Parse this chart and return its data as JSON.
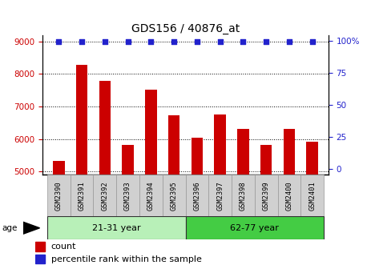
{
  "title": "GDS156 / 40876_at",
  "samples": [
    "GSM2390",
    "GSM2391",
    "GSM2392",
    "GSM2393",
    "GSM2394",
    "GSM2395",
    "GSM2396",
    "GSM2397",
    "GSM2398",
    "GSM2399",
    "GSM2400",
    "GSM2401"
  ],
  "counts": [
    5320,
    8270,
    7790,
    5810,
    7530,
    6740,
    6040,
    6760,
    6320,
    5810,
    6320,
    5910
  ],
  "percentiles": [
    99,
    99,
    99,
    99,
    99,
    99,
    99,
    99,
    99,
    99,
    99,
    99
  ],
  "ylim_left": [
    4900,
    9200
  ],
  "ylim_right": [
    -4.5,
    104.5
  ],
  "yticks_left": [
    5000,
    6000,
    7000,
    8000,
    9000
  ],
  "yticks_right": [
    0,
    25,
    50,
    75,
    100
  ],
  "groups": [
    {
      "label": "21-31 year",
      "start": 0,
      "end": 6,
      "color": "#b8f0b8"
    },
    {
      "label": "62-77 year",
      "start": 6,
      "end": 12,
      "color": "#44cc44"
    }
  ],
  "age_label": "age",
  "bar_color": "#cc0000",
  "dot_color": "#2222cc",
  "legend_items": [
    {
      "label": "count",
      "color": "#cc0000"
    },
    {
      "label": "percentile rank within the sample",
      "color": "#2222cc"
    }
  ],
  "tick_label_color_left": "#cc0000",
  "tick_label_color_right": "#2222cc",
  "bar_bottom": 4900
}
